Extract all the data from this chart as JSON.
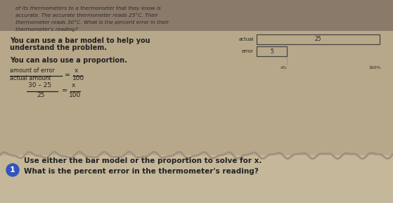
{
  "page_bg": "#b8a88a",
  "page_bg_upper": "#8a7a6a",
  "bottom_bg": "#c5b89a",
  "text_dark": "#222222",
  "text_italic_color": "#2a2a2a",
  "title_lines": [
    "of its thermometers to a thermometer that they know is",
    "accurate. The accurate thermometer reads 25°C. Their",
    "thermometer reads 30°C. What is the percent error in their",
    "thermometer's reading?"
  ],
  "bar_model_line1": "You can use a bar model to help you",
  "bar_model_line2": "understand the problem.",
  "proportion_line": "You can also use a proportion.",
  "frac1_num": "amount of error",
  "frac1_den": "actual amount",
  "frac1_rnum": "x",
  "frac1_rden": "100",
  "frac2_num": "30 – 25",
  "frac2_den": "25",
  "frac2_rnum": "x",
  "frac2_rden": "100",
  "bar_actual_label": "actual",
  "bar_error_label": "error",
  "bar_actual_val": "25",
  "bar_error_val": "5",
  "bar_pct_x": "x%",
  "bar_pct_100": "100%",
  "bottom_bullet_bg": "#3355bb",
  "bottom_bullet_num": "1",
  "bottom_line1": "Use either the bar model or the proportion to solve for x.",
  "bottom_line2": "What is the percent error in the thermometer's reading?",
  "bottom_text_color": "#222222",
  "wave_color": "#a09080"
}
